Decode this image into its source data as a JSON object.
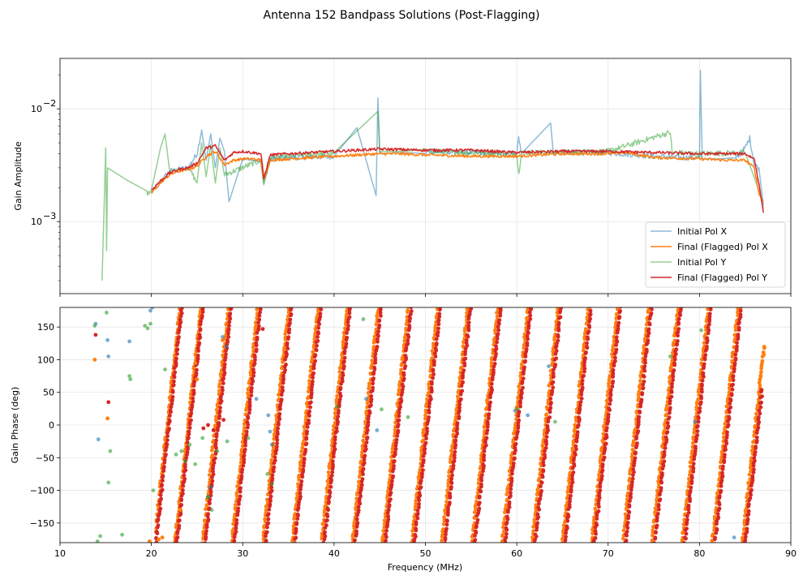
{
  "figure": {
    "title": "Antenna 152 Bandpass Solutions (Post-Flagging)"
  },
  "chart_data": [
    {
      "type": "line",
      "yscale": "log",
      "ylabel": "Gain Amplitude",
      "xlabel": "",
      "xlim": [
        10,
        90
      ],
      "ylim": [
        0.00023,
        0.028
      ],
      "grid": true,
      "legend_position": "lower-right",
      "x_ticks": [
        10,
        20,
        30,
        40,
        50,
        60,
        70,
        80,
        90
      ],
      "y_tick_labels": [
        {
          "value": 0.001,
          "label": "10",
          "exp": "−3"
        },
        {
          "value": 0.01,
          "label": "10",
          "exp": "−2"
        }
      ],
      "series": [
        {
          "name": "Initial Pol X",
          "color": "#1f77b4",
          "alpha": 0.5,
          "x": [
            20,
            22,
            24,
            25,
            25.5,
            26,
            26.5,
            27,
            27.5,
            28,
            28.5,
            30,
            32,
            32.3,
            33,
            35,
            40,
            42.5,
            44.6,
            44.8,
            45,
            50,
            55,
            60,
            60.2,
            60.5,
            63.7,
            64,
            65,
            70,
            75,
            78,
            80,
            80.1,
            80.3,
            84,
            85,
            85.5,
            86,
            86.5,
            87
          ],
          "y": [
            0.0018,
            0.0028,
            0.003,
            0.004,
            0.0065,
            0.0035,
            0.006,
            0.003,
            0.0055,
            0.0042,
            0.0015,
            0.0036,
            0.0034,
            0.0022,
            0.0036,
            0.0037,
            0.0038,
            0.0068,
            0.0017,
            0.0125,
            0.004,
            0.0042,
            0.0041,
            0.004,
            0.0058,
            0.004,
            0.0075,
            0.004,
            0.0041,
            0.0041,
            0.0038,
            0.0037,
            0.0037,
            0.022,
            0.0036,
            0.0036,
            0.0045,
            0.0055,
            0.0032,
            0.003,
            0.0014
          ]
        },
        {
          "name": "Final (Flagged) Pol X",
          "color": "#ff7f0e",
          "alpha": 1,
          "x": [
            20,
            21,
            22,
            23,
            24,
            25,
            26,
            27,
            28,
            29,
            30,
            31,
            32,
            32.3,
            33,
            35,
            40,
            45,
            47,
            50,
            55,
            60,
            65,
            70,
            72,
            75,
            80,
            83,
            85,
            86,
            86.5,
            87
          ],
          "y": [
            0.0018,
            0.0022,
            0.0026,
            0.0028,
            0.0029,
            0.0031,
            0.0038,
            0.0042,
            0.0032,
            0.0035,
            0.0036,
            0.0036,
            0.0035,
            0.0023,
            0.0035,
            0.0036,
            0.0038,
            0.004,
            0.004,
            0.0039,
            0.0038,
            0.0038,
            0.004,
            0.004,
            0.0041,
            0.0037,
            0.0036,
            0.0035,
            0.0035,
            0.003,
            0.0018,
            0.0015
          ]
        },
        {
          "name": "Initial Pol Y",
          "color": "#2ca02c",
          "alpha": 0.5,
          "x": [
            14.6,
            15,
            15.1,
            15.2,
            19.5,
            20,
            21,
            21.5,
            22,
            24,
            25,
            25.5,
            26,
            26.5,
            27,
            27.5,
            28,
            32,
            32.3,
            33,
            40,
            44.8,
            45,
            50,
            60,
            60.2,
            60.5,
            65,
            70,
            76.8,
            77,
            80,
            85,
            86.5,
            87
          ],
          "y": [
            0.0003,
            0.0045,
            0.00055,
            0.003,
            0.0018,
            0.0019,
            0.0045,
            0.006,
            0.0028,
            0.0031,
            0.0022,
            0.005,
            0.0025,
            0.0048,
            0.0022,
            0.0045,
            0.0026,
            0.0035,
            0.0021,
            0.0037,
            0.0041,
            0.0095,
            0.0042,
            0.0042,
            0.004,
            0.0026,
            0.0041,
            0.0041,
            0.0042,
            0.0062,
            0.0041,
            0.004,
            0.0041,
            0.0019,
            0.0013
          ]
        },
        {
          "name": "Final (Flagged) Pol Y",
          "color": "#d62728",
          "alpha": 1,
          "x": [
            20,
            21,
            22,
            23,
            24,
            25,
            26,
            27,
            28,
            29,
            30,
            31,
            32,
            32.3,
            33,
            35,
            40,
            45,
            50,
            55,
            60,
            65,
            70,
            75,
            80,
            83,
            85,
            86,
            86.5,
            87
          ],
          "y": [
            0.0019,
            0.0023,
            0.0027,
            0.0029,
            0.003,
            0.0033,
            0.0045,
            0.0047,
            0.0035,
            0.0041,
            0.0042,
            0.0041,
            0.004,
            0.0024,
            0.0039,
            0.004,
            0.0042,
            0.0044,
            0.0043,
            0.0043,
            0.0041,
            0.0042,
            0.0042,
            0.0041,
            0.004,
            0.004,
            0.004,
            0.0036,
            0.0022,
            0.0012
          ]
        }
      ]
    },
    {
      "type": "scatter",
      "ylabel": "Gain Phase (deg)",
      "xlabel": "Frequency (MHz)",
      "xlim": [
        10,
        90
      ],
      "ylim": [
        -180,
        180
      ],
      "grid": true,
      "x_ticks": [
        10,
        20,
        30,
        40,
        50,
        60,
        70,
        80,
        90
      ],
      "y_ticks": [
        -150,
        -100,
        -50,
        0,
        50,
        100,
        150
      ],
      "wrap_line_x_at_minus180_pol_x": [
        20.3,
        22.6,
        25.6,
        28.8,
        32.2,
        35.4,
        38.6,
        42,
        45.3,
        48.5,
        51.8,
        55.1,
        58.4,
        61.7,
        65,
        68.2,
        71.6,
        74.8,
        78.1,
        81.4,
        84.7
      ],
      "wrap_line_x_at_minus180_pol_y": [
        20.5,
        22.8,
        25.9,
        29.1,
        32.5,
        35.7,
        38.9,
        42.3,
        45.6,
        48.8,
        52.1,
        55.4,
        58.7,
        62,
        65.3,
        68.5,
        71.9,
        75.1,
        78.4,
        81.7,
        85
      ],
      "wrap_line_dx_per_360deg": 2.85,
      "band_start_mhz": 20.5,
      "band_end_mhz_x": 87.1,
      "band_end_mhz_y": 86.9,
      "series": [
        {
          "name": "Initial Pol X",
          "color": "#1f77b4",
          "alpha": 0.6,
          "x": [
            13.9,
            14.2,
            15.2,
            15.3,
            17.6,
            19.9,
            20.1,
            26.2,
            26.5,
            27.8,
            28.2,
            31.5,
            32.8,
            33,
            33.2,
            43.5,
            44.7,
            59.8,
            61.2,
            63.5,
            79.5,
            83.8
          ],
          "y": [
            155,
            -22,
            130,
            105,
            128,
            175,
            180,
            -110,
            -95,
            135,
            120,
            40,
            15,
            -10,
            -30,
            40,
            -8,
            22,
            15,
            90,
            5,
            -172
          ]
        },
        {
          "name": "Final (Flagged) Pol X",
          "color": "#ff7f0e",
          "alpha": 1,
          "x": [
            13.8,
            15.2,
            19.8,
            20.8,
            21.2,
            23.2,
            24.8,
            25,
            27.8
          ],
          "y": [
            100,
            10,
            -178,
            -175,
            -172,
            -130,
            95,
            70,
            130
          ]
        },
        {
          "name": "Initial Pol Y",
          "color": "#2ca02c",
          "alpha": 0.6,
          "x": [
            13.8,
            14.1,
            14.4,
            15.1,
            15.3,
            15.5,
            16.8,
            17.6,
            17.7,
            19.3,
            19.6,
            19.9,
            20.2,
            21.5,
            22.7,
            23.3,
            23.7,
            24.2,
            24.8,
            25.6,
            26.2,
            26.6,
            27.2,
            28.3,
            30.6,
            32.7,
            33.2,
            40.3,
            43.2,
            45.2,
            48.1,
            60.1,
            64.2,
            76.8,
            80.2
          ],
          "y": [
            152,
            -178,
            -170,
            172,
            -88,
            -40,
            -168,
            75,
            70,
            152,
            148,
            155,
            -100,
            85,
            -45,
            -40,
            -55,
            -30,
            -60,
            -20,
            -110,
            -130,
            -40,
            -25,
            -20,
            -75,
            -90,
            28,
            162,
            24,
            12,
            25,
            5,
            105,
            145
          ]
        },
        {
          "name": "Final (Flagged) Pol Y",
          "color": "#d62728",
          "alpha": 1,
          "x": [
            13.9,
            15.3,
            25.7,
            26.2,
            26.8,
            27.3,
            27.9,
            32.2
          ],
          "y": [
            138,
            35,
            -5,
            0,
            -8,
            2,
            8,
            147
          ]
        }
      ]
    }
  ]
}
